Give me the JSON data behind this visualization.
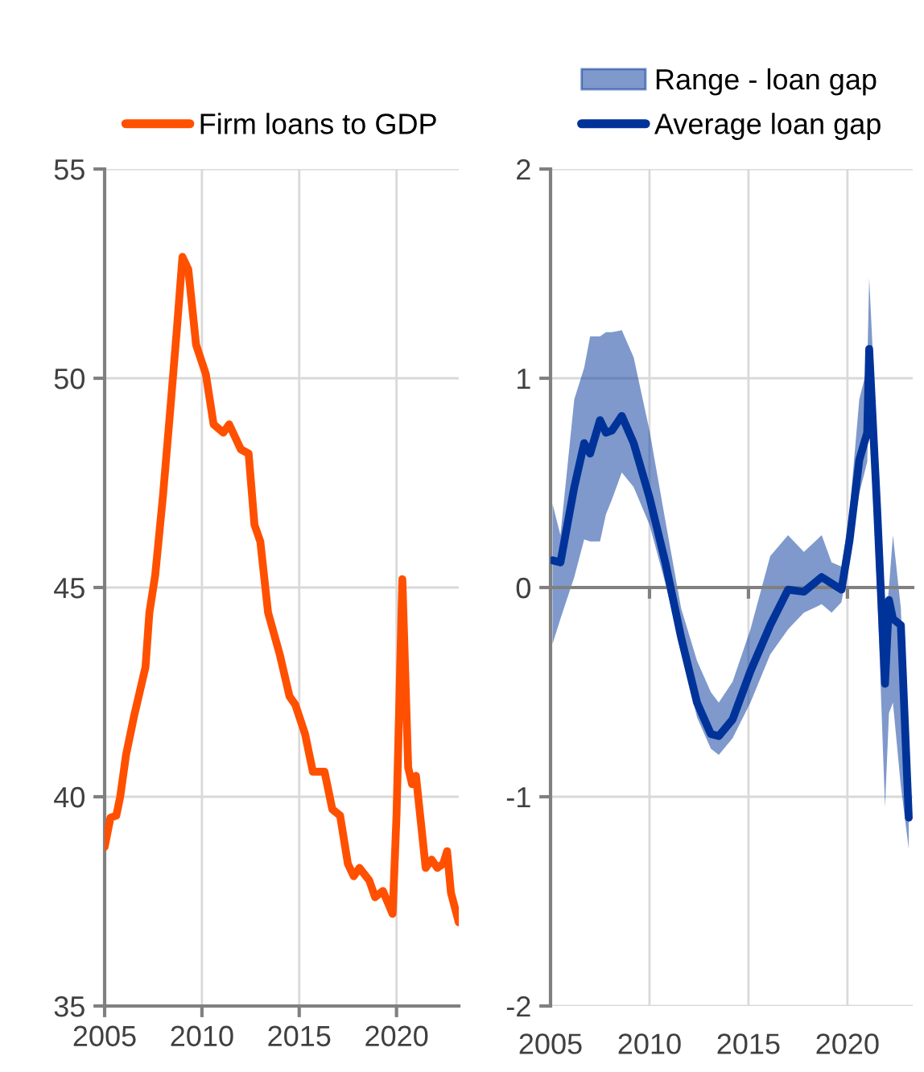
{
  "chart_data": [
    {
      "type": "line",
      "xlim": [
        2005,
        2023.2
      ],
      "xticks": [
        2005,
        2010,
        2015,
        2020
      ],
      "ylim": [
        35,
        55
      ],
      "yticks": [
        35,
        40,
        45,
        50,
        55
      ],
      "grid": true,
      "legend": "top",
      "line_style": "solid",
      "marker": "none",
      "series": [
        {
          "name": "Firm loans to GDP",
          "color": "#ff5000",
          "x": [
            2005.0,
            2005.3,
            2005.6,
            2005.8,
            2006.1,
            2006.5,
            2007.1,
            2007.3,
            2007.6,
            2008.0,
            2008.4,
            2008.7,
            2009.0,
            2009.3,
            2009.7,
            2010.2,
            2010.6,
            2011.1,
            2011.4,
            2012.0,
            2012.4,
            2012.7,
            2013.0,
            2013.4,
            2014.0,
            2014.2,
            2014.5,
            2014.8,
            2015.3,
            2015.7,
            2016.3,
            2016.7,
            2017.1,
            2017.5,
            2017.8,
            2018.1,
            2018.6,
            2018.9,
            2019.3,
            2019.8,
            2020.0,
            2020.3,
            2020.6,
            2020.8,
            2021.0,
            2021.5,
            2021.8,
            2022.1,
            2022.4,
            2022.6,
            2022.8,
            2023.2
          ],
          "values": [
            38.8,
            39.5,
            39.55,
            40.0,
            41.0,
            41.9,
            43.1,
            44.4,
            45.3,
            47.2,
            49.4,
            51.1,
            52.9,
            52.6,
            50.8,
            50.1,
            48.9,
            48.7,
            48.9,
            48.3,
            48.2,
            46.5,
            46.1,
            44.4,
            43.4,
            43.0,
            42.4,
            42.2,
            41.5,
            40.6,
            40.6,
            39.7,
            39.55,
            38.4,
            38.1,
            38.3,
            38.0,
            37.6,
            37.75,
            37.2,
            39.55,
            45.2,
            40.7,
            40.3,
            40.5,
            38.3,
            38.5,
            38.3,
            38.4,
            38.7,
            37.7,
            37.0
          ]
        }
      ]
    },
    {
      "type": "line",
      "annotations": [
        "Range - loan gap"
      ],
      "xlim": [
        2005,
        2023.3
      ],
      "xticks": [
        2005,
        2010,
        2015,
        2020
      ],
      "ylim": [
        -2,
        2
      ],
      "yticks": [
        -2,
        -1,
        0,
        1,
        2
      ],
      "grid": true,
      "legend": "top",
      "line_style": "solid",
      "marker": "none",
      "series": [
        {
          "name": "Average loan gap",
          "color": "#003399",
          "x": [
            2005.1,
            2005.5,
            2006.2,
            2006.7,
            2007.0,
            2007.5,
            2007.8,
            2008.1,
            2008.6,
            2009.2,
            2010.0,
            2010.8,
            2011.6,
            2012.4,
            2013.1,
            2013.5,
            2014.2,
            2015.1,
            2016.1,
            2017.0,
            2017.8,
            2018.7,
            2019.2,
            2019.7,
            2020.1,
            2020.6,
            2021.0,
            2021.1,
            2021.5,
            2021.9,
            2022.1,
            2022.3,
            2022.7,
            2023.1
          ],
          "upper": [
            0.4,
            0.25,
            0.9,
            1.05,
            1.2,
            1.2,
            1.22,
            1.22,
            1.23,
            1.1,
            0.75,
            0.32,
            -0.1,
            -0.35,
            -0.5,
            -0.55,
            -0.45,
            -0.2,
            0.15,
            0.25,
            0.17,
            0.25,
            0.12,
            0.1,
            0.35,
            0.9,
            1.05,
            1.48,
            0.7,
            -0.2,
            0.0,
            0.25,
            -0.1,
            -1.0
          ],
          "lower": [
            -0.27,
            -0.15,
            0.05,
            0.23,
            0.22,
            0.22,
            0.35,
            0.42,
            0.55,
            0.48,
            0.3,
            0.02,
            -0.3,
            -0.62,
            -0.77,
            -0.8,
            -0.72,
            -0.55,
            -0.32,
            -0.2,
            -0.12,
            -0.08,
            -0.12,
            -0.07,
            0.15,
            0.45,
            0.6,
            0.9,
            0.0,
            -1.05,
            -0.6,
            -0.55,
            -0.95,
            -1.25
          ],
          "values": [
            0.13,
            0.12,
            0.48,
            0.69,
            0.64,
            0.8,
            0.74,
            0.75,
            0.82,
            0.69,
            0.43,
            0.12,
            -0.24,
            -0.55,
            -0.7,
            -0.71,
            -0.63,
            -0.4,
            -0.18,
            -0.01,
            -0.02,
            0.05,
            0.02,
            -0.01,
            0.22,
            0.61,
            0.74,
            1.14,
            0.38,
            -0.46,
            -0.06,
            -0.15,
            -0.18,
            -1.1
          ]
        }
      ]
    }
  ]
}
